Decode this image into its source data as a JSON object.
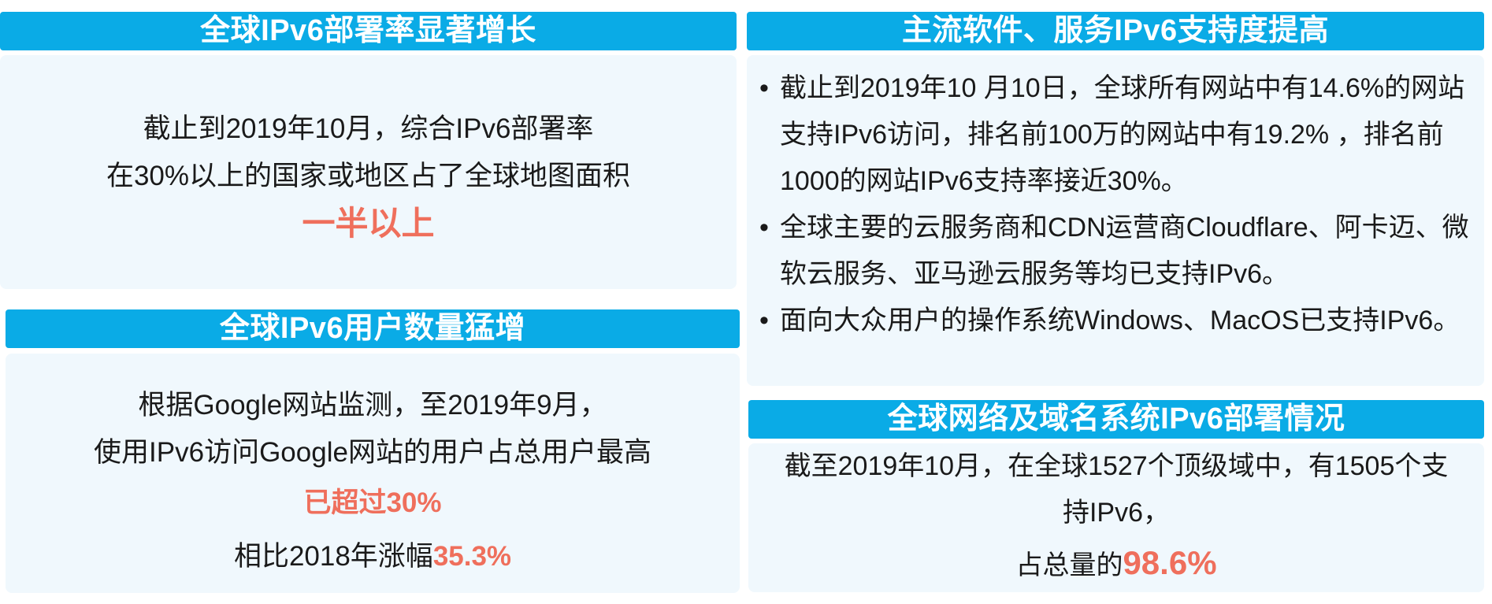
{
  "panels": {
    "deployment": {
      "title": "全球IPv6部署率显著增长",
      "line1": "截止到2019年10月，综合IPv6部署率",
      "line2": "在30%以上的国家或地区占了全球地图面积",
      "highlight": "一半以上"
    },
    "users": {
      "title": "全球IPv6用户数量猛增",
      "line1": "根据Google网站监测，至2019年9月，",
      "line2": "使用IPv6访问Google网站的用户占总用户最高",
      "highlight": "已超过30%",
      "line4_prefix": "相比2018年涨幅",
      "line4_value": "35.3%"
    },
    "software": {
      "title": "主流软件、服务IPv6支持度提高",
      "bullet_symbol": "•",
      "bullets": [
        "截止到2019年10 月10日，全球所有网站中有14.6%的网站支持IPv6访问，排名前100万的网站中有19.2% ，排名前1000的网站IPv6支持率接近30%。",
        "全球主要的云服务商和CDN运营商Cloudflare、阿卡迈、微软云服务、亚马逊云服务等均已支持IPv6。",
        "面向大众用户的操作系统Windows、MacOS已支持IPv6。"
      ]
    },
    "dns": {
      "title": "全球网络及域名系统IPv6部署情况",
      "line1": "截至2019年10月，在全球1527个顶级域中，有1505个支",
      "line2": "持IPv6，",
      "line3_prefix": "占总量的",
      "line3_value": "98.6%"
    }
  },
  "colors": {
    "header_bg": "#0aabe6",
    "panel_bg": "#f0f8fd",
    "accent": "#ef6f5c"
  }
}
